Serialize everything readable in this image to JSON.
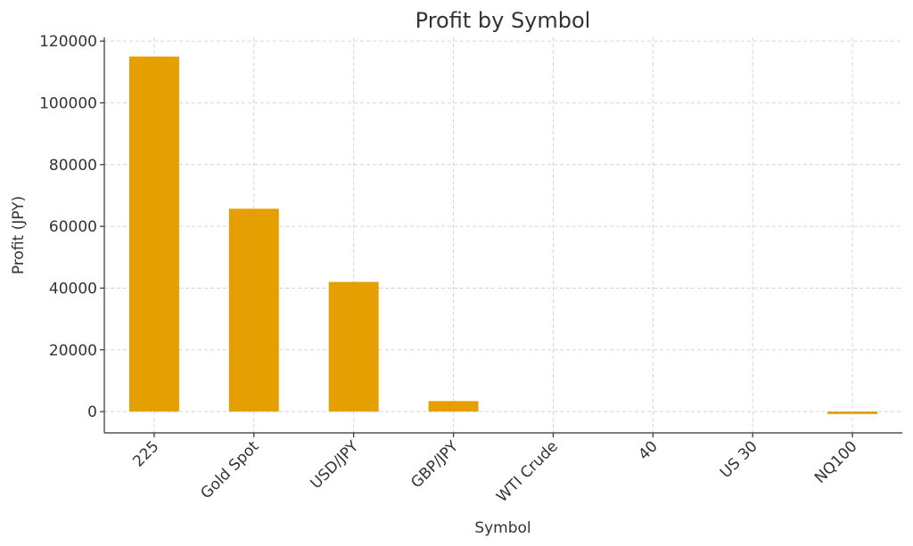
{
  "chart_data": {
    "type": "bar",
    "title": "Profit by Symbol",
    "x_label": "Symbol",
    "y_label": "Profit (JPY)",
    "categories": [
      "225",
      "Gold Spot",
      "USD/JPY",
      "GBP/JPY",
      "WTI Crude",
      "40",
      "US 30",
      "NQ100"
    ],
    "values": [
      115000,
      65700,
      42000,
      3400,
      0,
      0,
      0,
      -800
    ],
    "color": "#e69f00",
    "ylim": [
      -6900,
      121200
    ],
    "yticks": [
      0,
      20000,
      40000,
      60000,
      80000,
      100000,
      120000
    ],
    "grid": true
  }
}
